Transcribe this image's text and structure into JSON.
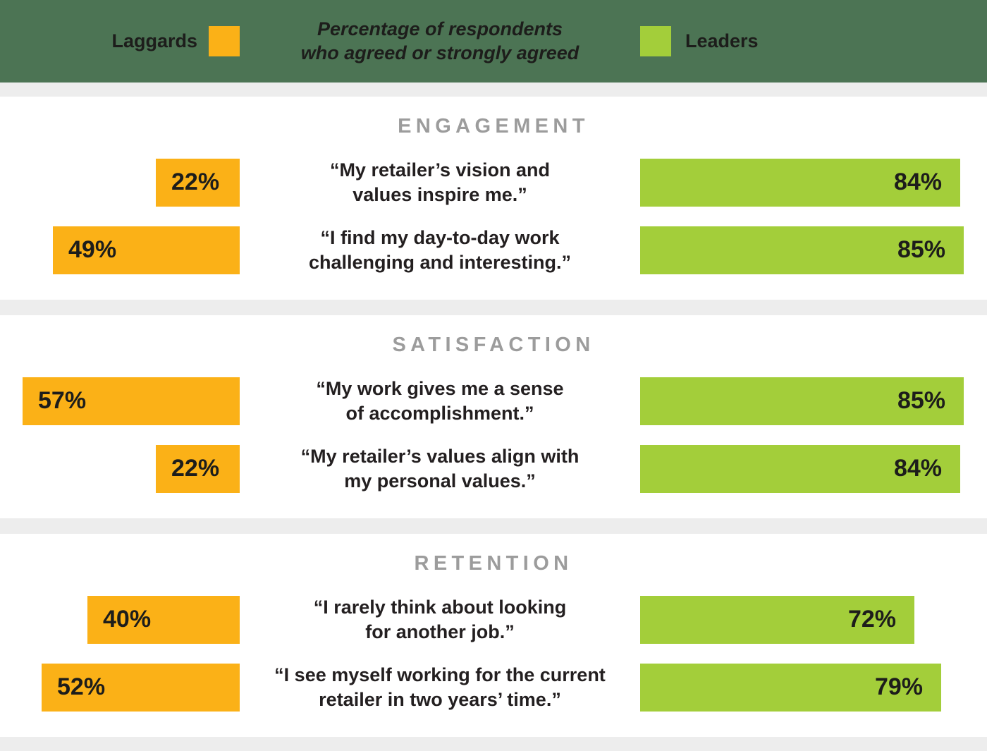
{
  "header": {
    "legend_left": "Laggards",
    "title_line1": "Percentage of respondents",
    "title_line2": "who agreed or strongly agreed",
    "legend_right": "Leaders"
  },
  "colors": {
    "header_bg": "#4C7454",
    "laggards": "#FBB117",
    "leaders": "#A3CE3A",
    "page_bg": "#EDEDED",
    "card_bg": "#FFFFFF",
    "section_title": "#9C9C9C",
    "text": "#231F20"
  },
  "chart_data": {
    "type": "bar",
    "subtype": "diverging-horizontal",
    "unit": "%",
    "series_names": [
      "Laggards",
      "Leaders"
    ],
    "value_range": [
      0,
      100
    ],
    "legend_position": "top",
    "grid": false,
    "sections": [
      {
        "title": "ENGAGEMENT",
        "rows": [
          {
            "statement_line1": "“My retailer’s vision and",
            "statement_line2": "values inspire me.”",
            "laggards": 22,
            "leaders": 84
          },
          {
            "statement_line1": "“I find my day-to-day work",
            "statement_line2": "challenging and interesting.”",
            "laggards": 49,
            "leaders": 85
          }
        ]
      },
      {
        "title": "SATISFACTION",
        "rows": [
          {
            "statement_line1": "“My work gives me a sense",
            "statement_line2": "of accomplishment.”",
            "laggards": 57,
            "leaders": 85
          },
          {
            "statement_line1": "“My retailer’s values align with",
            "statement_line2": "my personal values.”",
            "laggards": 22,
            "leaders": 84
          }
        ]
      },
      {
        "title": "RETENTION",
        "rows": [
          {
            "statement_line1": "“I rarely think about looking",
            "statement_line2": "for another job.”",
            "laggards": 40,
            "leaders": 72
          },
          {
            "statement_line1": "“I see myself working for the current",
            "statement_line2": "retailer in two years’ time.”",
            "laggards": 52,
            "leaders": 79
          }
        ]
      }
    ]
  }
}
